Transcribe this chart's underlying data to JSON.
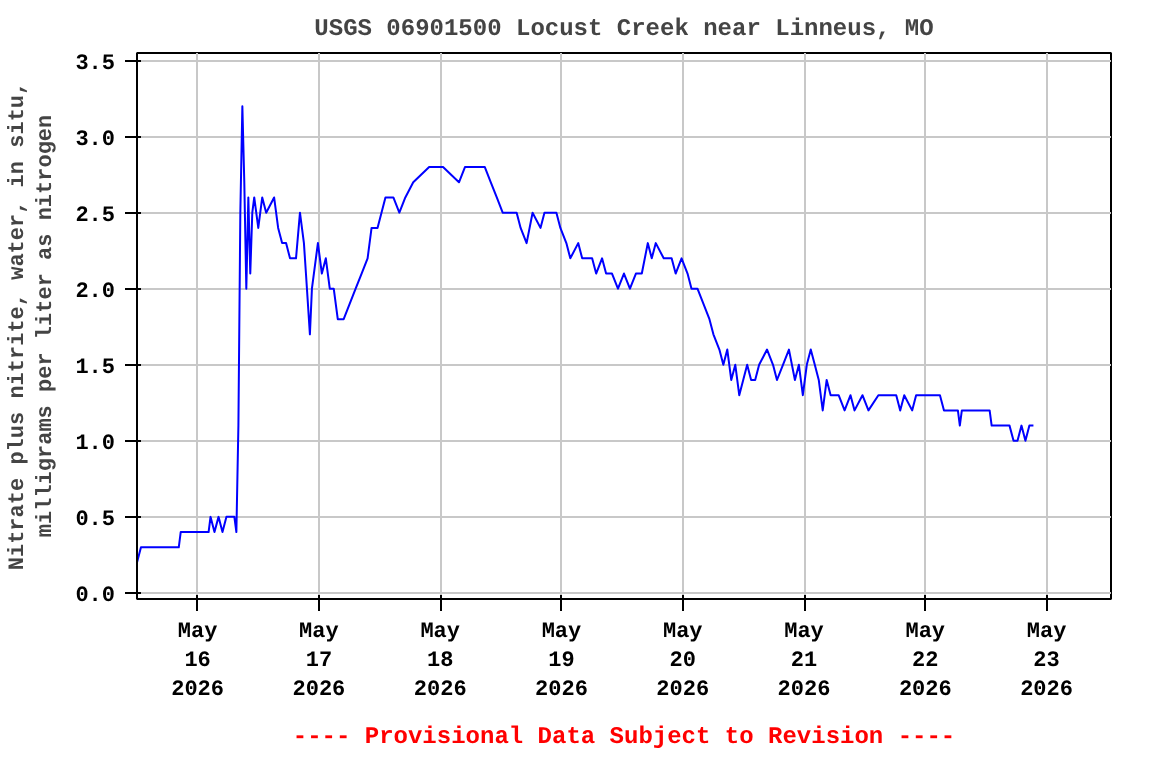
{
  "chart_data": {
    "type": "line",
    "title": "USGS 06901500 Locust Creek near Linneus, MO",
    "ylabel": "Nitrate plus nitrite, water, in situ,\nmilligrams per liter as nitrogen",
    "annotations": [
      "---- Provisional Data Subject to Revision ----"
    ],
    "x": [
      "2026-05-15T12:00",
      "2026-05-15T12:47",
      "2026-05-15T20:16",
      "2026-05-15T20:39",
      "2026-05-16T02:10",
      "2026-05-16T02:33",
      "2026-05-16T03:20",
      "2026-05-16T04:08",
      "2026-05-16T04:55",
      "2026-05-16T05:42",
      "2026-05-16T07:16",
      "2026-05-16T07:40",
      "2026-05-16T08:04",
      "2026-05-16T08:27",
      "2026-05-16T08:51",
      "2026-05-16T09:14",
      "2026-05-16T09:38",
      "2026-05-16T10:02",
      "2026-05-16T10:25",
      "2026-05-16T10:49",
      "2026-05-16T11:12",
      "2026-05-16T12:00",
      "2026-05-16T12:47",
      "2026-05-16T13:34",
      "2026-05-16T15:08",
      "2026-05-16T15:56",
      "2026-05-16T16:43",
      "2026-05-16T17:30",
      "2026-05-16T18:17",
      "2026-05-16T19:28",
      "2026-05-16T20:15",
      "2026-05-16T21:02",
      "2026-05-16T21:26",
      "2026-05-16T22:13",
      "2026-05-16T22:37",
      "2026-05-16T23:48",
      "2026-05-17T00:35",
      "2026-05-17T01:22",
      "2026-05-17T02:09",
      "2026-05-17T02:56",
      "2026-05-17T03:44",
      "2026-05-17T04:54",
      "2026-05-17T06:05",
      "2026-05-17T07:16",
      "2026-05-17T08:27",
      "2026-05-17T09:38",
      "2026-05-17T10:25",
      "2026-05-17T11:36",
      "2026-05-17T13:10",
      "2026-05-17T14:44",
      "2026-05-17T15:55",
      "2026-05-17T17:06",
      "2026-05-17T18:40",
      "2026-05-17T21:49",
      "2026-05-18T00:34",
      "2026-05-18T03:43",
      "2026-05-18T04:54",
      "2026-05-18T08:50",
      "2026-05-18T10:01",
      "2026-05-18T11:12",
      "2026-05-18T12:22",
      "2026-05-18T15:08",
      "2026-05-18T15:55",
      "2026-05-18T17:06",
      "2026-05-18T18:17",
      "2026-05-18T19:51",
      "2026-05-18T20:38",
      "2026-05-18T23:00",
      "2026-05-18T23:47",
      "2026-05-19T00:58",
      "2026-05-19T01:45",
      "2026-05-19T03:19",
      "2026-05-19T04:06",
      "2026-05-19T06:04",
      "2026-05-19T06:52",
      "2026-05-19T08:02",
      "2026-05-19T08:50",
      "2026-05-19T10:00",
      "2026-05-19T11:11",
      "2026-05-19T12:22",
      "2026-05-19T13:33",
      "2026-05-19T14:44",
      "2026-05-19T15:54",
      "2026-05-19T17:05",
      "2026-05-19T17:52",
      "2026-05-19T18:40",
      "2026-05-19T20:14",
      "2026-05-19T21:48",
      "2026-05-19T22:36",
      "2026-05-19T23:46",
      "2026-05-20T00:57",
      "2026-05-20T01:44",
      "2026-05-20T02:55",
      "2026-05-20T04:06",
      "2026-05-20T05:17",
      "2026-05-20T06:04",
      "2026-05-20T07:15",
      "2026-05-20T08:02",
      "2026-05-20T08:49",
      "2026-05-20T09:36",
      "2026-05-20T10:24",
      "2026-05-20T11:11",
      "2026-05-20T11:58",
      "2026-05-20T12:45",
      "2026-05-20T13:32",
      "2026-05-20T14:20",
      "2026-05-20T15:07",
      "2026-05-20T16:41",
      "2026-05-20T17:52",
      "2026-05-20T18:39",
      "2026-05-20T19:50",
      "2026-05-20T21:01",
      "2026-05-20T22:12",
      "2026-05-20T22:59",
      "2026-05-20T23:46",
      "2026-05-21T00:33",
      "2026-05-21T01:20",
      "2026-05-21T02:08",
      "2026-05-21T02:55",
      "2026-05-21T03:42",
      "2026-05-21T04:29",
      "2026-05-21T05:16",
      "2026-05-21T06:51",
      "2026-05-21T08:02",
      "2026-05-21T09:12",
      "2026-05-21T10:00",
      "2026-05-21T11:34",
      "2026-05-21T12:45",
      "2026-05-21T14:43",
      "2026-05-21T18:15",
      "2026-05-21T19:02",
      "2026-05-21T19:50",
      "2026-05-21T21:24",
      "2026-05-21T22:11",
      "2026-05-22T02:54",
      "2026-05-22T03:42",
      "2026-05-22T06:27",
      "2026-05-22T06:50",
      "2026-05-22T07:14",
      "2026-05-22T12:44",
      "2026-05-22T13:08",
      "2026-05-22T16:40",
      "2026-05-22T17:28",
      "2026-05-22T18:15",
      "2026-05-22T19:02",
      "2026-05-22T19:49",
      "2026-05-22T20:36",
      "2026-05-22T21:24"
    ],
    "series": [
      {
        "color": "#0000ff",
        "values": [
          0.2,
          0.3,
          0.3,
          0.4,
          0.4,
          0.5,
          0.4,
          0.5,
          0.4,
          0.5,
          0.5,
          0.4,
          1.1,
          2.5,
          3.2,
          2.7,
          2.0,
          2.6,
          2.1,
          2.5,
          2.6,
          2.4,
          2.6,
          2.5,
          2.6,
          2.4,
          2.3,
          2.3,
          2.2,
          2.2,
          2.5,
          2.3,
          2.1,
          1.7,
          2.0,
          2.3,
          2.1,
          2.2,
          2.0,
          2.0,
          1.8,
          1.8,
          1.9,
          2.0,
          2.1,
          2.2,
          2.4,
          2.4,
          2.6,
          2.6,
          2.5,
          2.6,
          2.7,
          2.8,
          2.8,
          2.7,
          2.8,
          2.8,
          2.7,
          2.6,
          2.5,
          2.5,
          2.4,
          2.3,
          2.5,
          2.4,
          2.5,
          2.5,
          2.4,
          2.3,
          2.2,
          2.3,
          2.2,
          2.2,
          2.1,
          2.2,
          2.1,
          2.1,
          2.0,
          2.1,
          2.0,
          2.1,
          2.1,
          2.3,
          2.2,
          2.3,
          2.2,
          2.2,
          2.1,
          2.2,
          2.1,
          2.0,
          2.0,
          1.9,
          1.8,
          1.7,
          1.6,
          1.5,
          1.6,
          1.4,
          1.5,
          1.3,
          1.4,
          1.5,
          1.4,
          1.4,
          1.5,
          1.6,
          1.5,
          1.4,
          1.5,
          1.6,
          1.4,
          1.5,
          1.3,
          1.5,
          1.6,
          1.5,
          1.4,
          1.2,
          1.4,
          1.3,
          1.3,
          1.2,
          1.3,
          1.2,
          1.3,
          1.2,
          1.3,
          1.3,
          1.2,
          1.3,
          1.2,
          1.3,
          1.3,
          1.2,
          1.2,
          1.1,
          1.2,
          1.2,
          1.1,
          1.1,
          1.0,
          1.0,
          1.1,
          1.0,
          1.1,
          1.1
        ]
      }
    ],
    "xlim": [
      "2026-05-15T12:00",
      "2026-05-23T12:45"
    ],
    "xticks": [
      {
        "value": "2026-05-16",
        "label": "May\n16\n2026"
      },
      {
        "value": "2026-05-17",
        "label": "May\n17\n2026"
      },
      {
        "value": "2026-05-18",
        "label": "May\n18\n2026"
      },
      {
        "value": "2026-05-19",
        "label": "May\n19\n2026"
      },
      {
        "value": "2026-05-20",
        "label": "May\n20\n2026"
      },
      {
        "value": "2026-05-21",
        "label": "May\n21\n2026"
      },
      {
        "value": "2026-05-22",
        "label": "May\n22\n2026"
      },
      {
        "value": "2026-05-23",
        "label": "May\n23\n2026"
      }
    ],
    "ylim": [
      -0.04,
      3.55
    ],
    "yticks": [
      {
        "value": 0,
        "label": "0.0"
      },
      {
        "value": 0.5,
        "label": "0.5"
      },
      {
        "value": 1,
        "label": "1.0"
      },
      {
        "value": 1.5,
        "label": "1.5"
      },
      {
        "value": 2,
        "label": "2.0"
      },
      {
        "value": 2.5,
        "label": "2.5"
      },
      {
        "value": 3,
        "label": "3.0"
      },
      {
        "value": 3.5,
        "label": "3.5"
      }
    ],
    "grid": true,
    "line_style": "solid"
  }
}
